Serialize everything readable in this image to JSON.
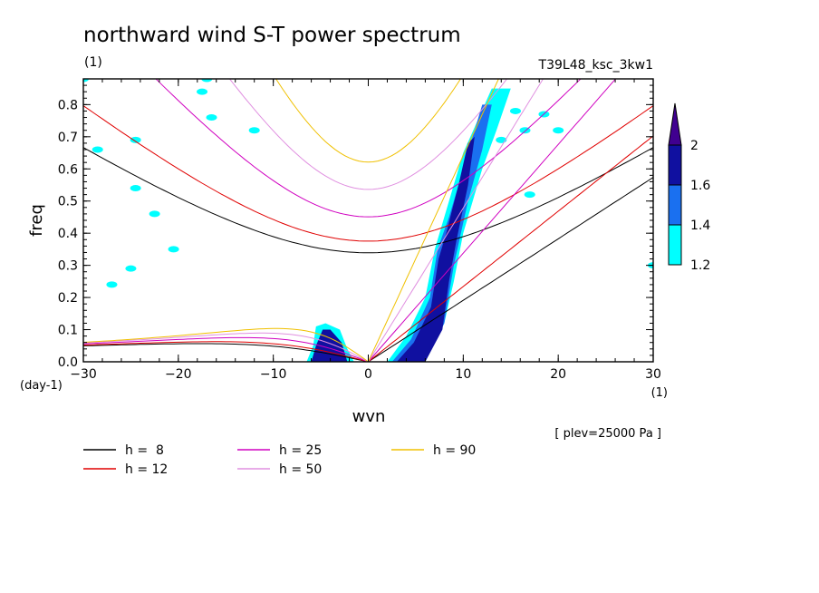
{
  "chart_data": {
    "type": "heatmap",
    "title": "northward wind S-T power spectrum",
    "subtitle_left": "(1)",
    "subtitle_right": "T39L48_ksc_3kw1",
    "xlabel": "wvn",
    "ylabel": "freq",
    "x_unit": "(1)",
    "y_unit": "(day-1)",
    "note": "[ plev=25000 Pa ]",
    "xlim": [
      -30,
      30
    ],
    "ylim": [
      0,
      0.88
    ],
    "xticks": [
      "-30",
      "-20",
      "-10",
      "0",
      "10",
      "20",
      "30"
    ],
    "yticks": [
      "0.0",
      "0.1",
      "0.2",
      "0.3",
      "0.4",
      "0.5",
      "0.6",
      "0.7",
      "0.8"
    ],
    "colorbar": {
      "levels": [
        "1.2",
        "1.4",
        "1.6",
        "2"
      ],
      "colors": [
        "#00ffff",
        "#1a70f0",
        "#1010a0",
        "#400090"
      ]
    },
    "dispersion_curves": [
      {
        "name": "h =  8",
        "h": 8,
        "color": "#000000"
      },
      {
        "name": "h = 12",
        "h": 12,
        "color": "#e00000"
      },
      {
        "name": "h = 25",
        "h": 25,
        "color": "#d000c0"
      },
      {
        "name": "h = 50",
        "h": 50,
        "color": "#e090e0"
      },
      {
        "name": "h = 90",
        "h": 90,
        "color": "#f0c000"
      }
    ],
    "power_regions": [
      {
        "shape": "band",
        "level": 1,
        "points": [
          [
            2,
            0
          ],
          [
            4,
            0.08
          ],
          [
            6,
            0.2
          ],
          [
            7,
            0.35
          ],
          [
            8.5,
            0.5
          ],
          [
            10,
            0.65
          ],
          [
            11.5,
            0.75
          ],
          [
            13,
            0.85
          ],
          [
            15,
            0.85
          ],
          [
            13.5,
            0.72
          ],
          [
            12,
            0.6
          ],
          [
            10,
            0.4
          ],
          [
            9,
            0.25
          ],
          [
            8,
            0.12
          ],
          [
            6,
            0
          ],
          [
            2,
            0
          ]
        ]
      },
      {
        "shape": "band",
        "level": 2,
        "points": [
          [
            2.5,
            0
          ],
          [
            4.5,
            0.07
          ],
          [
            6.5,
            0.2
          ],
          [
            7.3,
            0.35
          ],
          [
            8.5,
            0.45
          ],
          [
            10,
            0.6
          ],
          [
            11,
            0.7
          ],
          [
            12,
            0.8
          ],
          [
            13,
            0.8
          ],
          [
            12,
            0.66
          ],
          [
            10.5,
            0.5
          ],
          [
            9,
            0.3
          ],
          [
            8,
            0.12
          ],
          [
            6,
            0
          ],
          [
            2.5,
            0
          ]
        ]
      },
      {
        "shape": "band",
        "level": 3,
        "points": [
          [
            3,
            0
          ],
          [
            4.8,
            0.06
          ],
          [
            6.6,
            0.17
          ],
          [
            7.4,
            0.32
          ],
          [
            8.2,
            0.4
          ],
          [
            9.5,
            0.55
          ],
          [
            10.5,
            0.68
          ],
          [
            11.2,
            0.7
          ],
          [
            10.5,
            0.55
          ],
          [
            9.3,
            0.38
          ],
          [
            8.5,
            0.25
          ],
          [
            7.8,
            0.1
          ],
          [
            6,
            0
          ],
          [
            3,
            0
          ]
        ]
      },
      {
        "shape": "band",
        "level": 1,
        "points": [
          [
            -6.5,
            0
          ],
          [
            -5.8,
            0.05
          ],
          [
            -5.5,
            0.11
          ],
          [
            -4.5,
            0.12
          ],
          [
            -3,
            0.1
          ],
          [
            -2.2,
            0.04
          ],
          [
            -1.5,
            0
          ],
          [
            -6.5,
            0
          ]
        ]
      },
      {
        "shape": "band",
        "level": 3,
        "points": [
          [
            -6,
            0
          ],
          [
            -5.5,
            0.05
          ],
          [
            -4.8,
            0.1
          ],
          [
            -4,
            0.1
          ],
          [
            -2.8,
            0.06
          ],
          [
            -2.2,
            0
          ],
          [
            -6,
            0
          ]
        ]
      },
      {
        "shape": "blob",
        "level": 1,
        "x": -24.5,
        "y": 0.69
      },
      {
        "shape": "blob",
        "level": 1,
        "x": -28.5,
        "y": 0.66
      },
      {
        "shape": "blob",
        "level": 1,
        "x": -20.5,
        "y": 0.35
      },
      {
        "shape": "blob",
        "level": 1,
        "x": -25,
        "y": 0.29
      },
      {
        "shape": "blob",
        "level": 1,
        "x": -24.5,
        "y": 0.54
      },
      {
        "shape": "blob",
        "level": 1,
        "x": -22.5,
        "y": 0.46
      },
      {
        "shape": "blob",
        "level": 1,
        "x": -17.5,
        "y": 0.84
      },
      {
        "shape": "blob",
        "level": 1,
        "x": -16.5,
        "y": 0.76
      },
      {
        "shape": "blob",
        "level": 1,
        "x": -12,
        "y": 0.72
      },
      {
        "shape": "blob",
        "level": 1,
        "x": -27,
        "y": 0.24
      },
      {
        "shape": "blob",
        "level": 1,
        "x": -30,
        "y": 0.88
      },
      {
        "shape": "blob",
        "level": 1,
        "x": -17,
        "y": 0.88
      },
      {
        "shape": "blob",
        "level": 1,
        "x": 16.5,
        "y": 0.72
      },
      {
        "shape": "blob",
        "level": 1,
        "x": 18.5,
        "y": 0.77
      },
      {
        "shape": "blob",
        "level": 1,
        "x": 20,
        "y": 0.72
      },
      {
        "shape": "blob",
        "level": 1,
        "x": 15.5,
        "y": 0.78
      },
      {
        "shape": "blob",
        "level": 1,
        "x": 17,
        "y": 0.52
      },
      {
        "shape": "blob",
        "level": 1,
        "x": 30,
        "y": 0.3
      },
      {
        "shape": "blob",
        "level": 1,
        "x": 14,
        "y": 0.69
      }
    ]
  }
}
